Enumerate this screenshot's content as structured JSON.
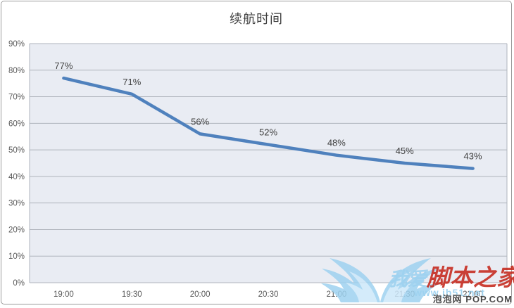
{
  "chart_data": {
    "type": "line",
    "title": "续航时间",
    "categories": [
      "19:00",
      "19:30",
      "20:00",
      "20:30",
      "21:00",
      "21:30",
      "22:00"
    ],
    "series": [
      {
        "name": "续航时间",
        "values": [
          77,
          71,
          56,
          52,
          48,
          45,
          43
        ]
      }
    ],
    "data_labels": [
      "77%",
      "71%",
      "56%",
      "52%",
      "48%",
      "45%",
      "43%"
    ],
    "y_ticks": [
      "0%",
      "10%",
      "20%",
      "30%",
      "40%",
      "50%",
      "60%",
      "70%",
      "80%",
      "90%"
    ],
    "ylim": [
      0,
      90
    ],
    "xlabel": "",
    "ylabel": "",
    "grid": true,
    "legend": "none",
    "colors": {
      "line": "#4F81BD",
      "plot_bg": "#E9ECF3",
      "gridline": "#AFB4BC",
      "plot_border": "#AFB4BC",
      "data_label": "#3F3F3F",
      "axis_text": "#595959",
      "title_text": "#3F3F3F"
    }
  },
  "watermark": {
    "brand_cn_prefix": "我爱",
    "brand_cn_main": "脚本之家",
    "url": "www.jb51.net",
    "dark_text": "泡泡网 POP.COM",
    "wing_color": "#9ED2F0"
  }
}
